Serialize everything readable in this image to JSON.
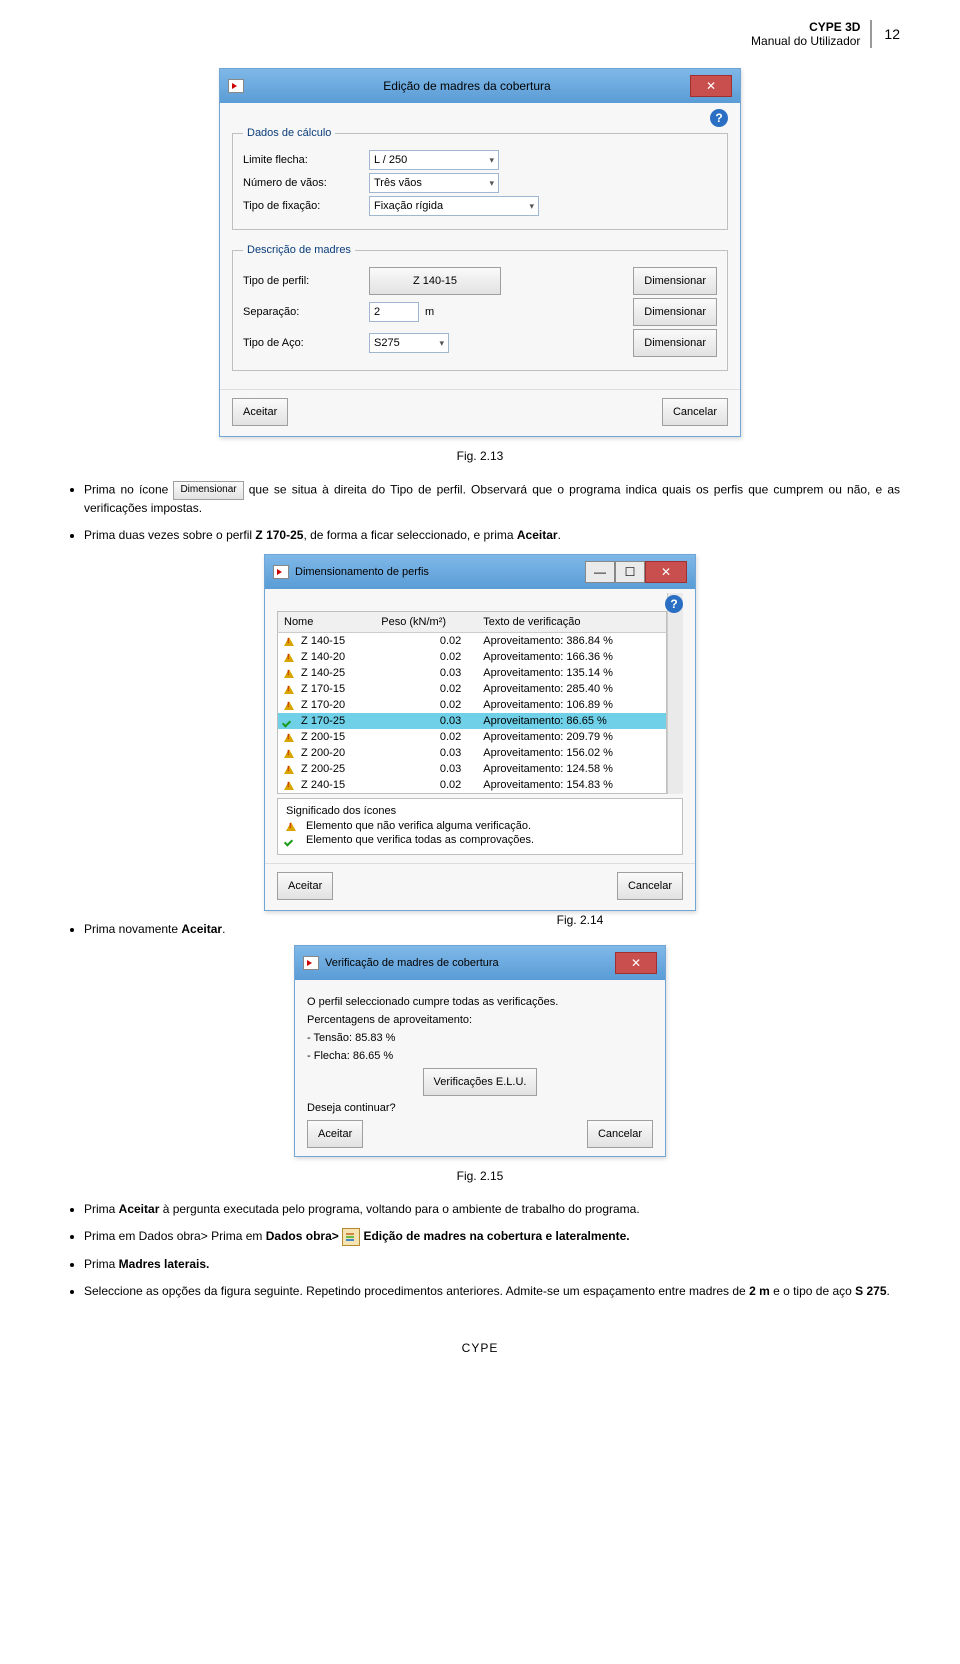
{
  "header": {
    "title1": "CYPE 3D",
    "title2": "Manual do Utilizador",
    "page": "12"
  },
  "dialog1": {
    "title": "Edição de madres da cobertura",
    "fs1": {
      "legend": "Dados de cálculo",
      "limite_label": "Limite flecha:",
      "limite_value": "L / 250",
      "vaos_label": "Número de vãos:",
      "vaos_value": "Três vãos",
      "fix_label": "Tipo de fixação:",
      "fix_value": "Fixação rígida"
    },
    "fs2": {
      "legend": "Descrição de madres",
      "perfil_label": "Tipo de perfil:",
      "perfil_value": "Z 140-15",
      "btn": "Dimensionar",
      "sep_label": "Separação:",
      "sep_value": "2",
      "sep_unit": "m",
      "aco_label": "Tipo de Aço:",
      "aco_value": "S275"
    },
    "accept": "Aceitar",
    "cancel": "Cancelar"
  },
  "caption1": "Fig. 2.13",
  "bullets1": [
    "Prima no ícone ",
    " que se situa à direita do Tipo de perfil. Observará que o programa indica quais os perfis que cumprem ou não, e as verificações impostas.",
    "Prima duas vezes sobre o perfil Z 170-25, de forma a ficar seleccionado, e prima Aceitar."
  ],
  "dim_btn_label": "Dimensionar",
  "dialog2": {
    "title": "Dimensionamento de perfis",
    "cols": [
      "Nome",
      "Peso (kN/m²)",
      "Texto de verificação"
    ],
    "rows": [
      {
        "icon": "warn",
        "nome": "Z 140-15",
        "peso": "0.02",
        "texto": "Aproveitamento: 386.84 %"
      },
      {
        "icon": "warn",
        "nome": "Z 140-20",
        "peso": "0.02",
        "texto": "Aproveitamento: 166.36 %"
      },
      {
        "icon": "warn",
        "nome": "Z 140-25",
        "peso": "0.03",
        "texto": "Aproveitamento: 135.14 %"
      },
      {
        "icon": "warn",
        "nome": "Z 170-15",
        "peso": "0.02",
        "texto": "Aproveitamento: 285.40 %"
      },
      {
        "icon": "warn",
        "nome": "Z 170-20",
        "peso": "0.02",
        "texto": "Aproveitamento: 106.89 %"
      },
      {
        "icon": "ok",
        "nome": "Z 170-25",
        "peso": "0.03",
        "texto": "Aproveitamento: 86.65 %",
        "sel": true
      },
      {
        "icon": "warn",
        "nome": "Z 200-15",
        "peso": "0.02",
        "texto": "Aproveitamento: 209.79 %"
      },
      {
        "icon": "warn",
        "nome": "Z 200-20",
        "peso": "0.03",
        "texto": "Aproveitamento: 156.02 %"
      },
      {
        "icon": "warn",
        "nome": "Z 200-25",
        "peso": "0.03",
        "texto": "Aproveitamento: 124.58 %"
      },
      {
        "icon": "warn",
        "nome": "Z 240-15",
        "peso": "0.02",
        "texto": "Aproveitamento: 154.83 %"
      }
    ],
    "legend_title": "Significado dos ícones",
    "legend_warn": "Elemento que não verifica alguma verificação.",
    "legend_ok": "Elemento que verifica todas as comprovações.",
    "accept": "Aceitar",
    "cancel": "Cancelar"
  },
  "caption2": "Fig. 2.14",
  "bullet2": "Prima novamente Aceitar.",
  "dialog3": {
    "title": "Verificação de madres de cobertura",
    "line1": "O perfil seleccionado cumpre todas as verificações.",
    "line2": "Percentagens de aproveitamento:",
    "tensao": "- Tensão: 85.83 %",
    "flecha": "- Flecha: 86.65 %",
    "elubtn": "Verificações E.L.U.",
    "q": "Deseja continuar?",
    "accept": "Aceitar",
    "cancel": "Cancelar"
  },
  "caption3": "Fig. 2.15",
  "bullets3": {
    "b1": "Prima Aceitar à pergunta executada pelo programa, voltando para o ambiente de trabalho do programa.",
    "b2a": "Prima em Dados obra> ",
    "b2b": " Edição de madres na cobertura e lateralmente.",
    "b3": "Prima Madres laterais.",
    "b4": "Seleccione as opções da figura seguinte. Repetindo procedimentos anteriores. Admite-se um espaçamento entre madres de 2 m e o tipo de aço S 275."
  },
  "footer": "CYPE"
}
